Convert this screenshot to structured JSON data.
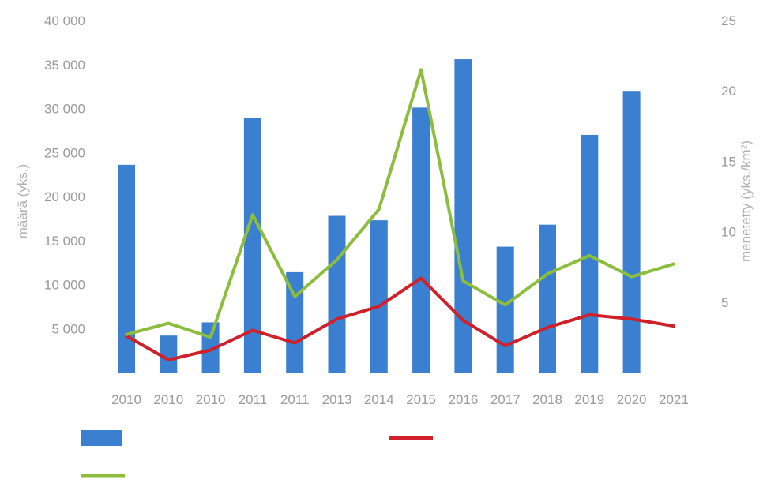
{
  "chart_data": {
    "type": "bar+line",
    "categories": [
      "2010",
      "2010",
      "2010",
      "2011",
      "2011",
      "2013",
      "2014",
      "2015",
      "2016",
      "2017",
      "2018",
      "2019",
      "2020",
      "2021"
    ],
    "y_left": {
      "label": "määrä (yks.)",
      "lim": [
        0,
        40000
      ],
      "ticks": [
        "40 000",
        "35 000",
        "30 000",
        "25 000",
        "20 000",
        "15 000",
        "10 000",
        "5 000",
        ""
      ]
    },
    "y_right": {
      "label": "menetetty (yks./km²)",
      "lim": [
        0,
        25
      ],
      "ticks": [
        "25",
        "20",
        "15",
        "10",
        "5",
        ""
      ]
    },
    "series": [
      {
        "name": "",
        "kind": "bar",
        "axis": "left",
        "color": "#3a7fd0",
        "values": [
          23600,
          4200,
          5700,
          28900,
          11400,
          17800,
          17300,
          30100,
          35600,
          14300,
          16800,
          27000,
          32000,
          null
        ]
      },
      {
        "name": "",
        "kind": "line",
        "axis": "right",
        "color": "#d0202a",
        "values": [
          2.6,
          0.9,
          1.6,
          3.0,
          2.1,
          3.8,
          4.7,
          6.7,
          3.7,
          1.9,
          3.2,
          4.1,
          3.8,
          3.3
        ]
      },
      {
        "name": "",
        "kind": "line",
        "axis": "right",
        "color": "#8cbd3c",
        "values": [
          2.7,
          3.5,
          2.5,
          11.2,
          5.4,
          8.0,
          11.6,
          21.5,
          6.5,
          4.8,
          7.0,
          8.3,
          6.8,
          7.7
        ]
      }
    ],
    "grid": false,
    "legend": "bottom"
  }
}
